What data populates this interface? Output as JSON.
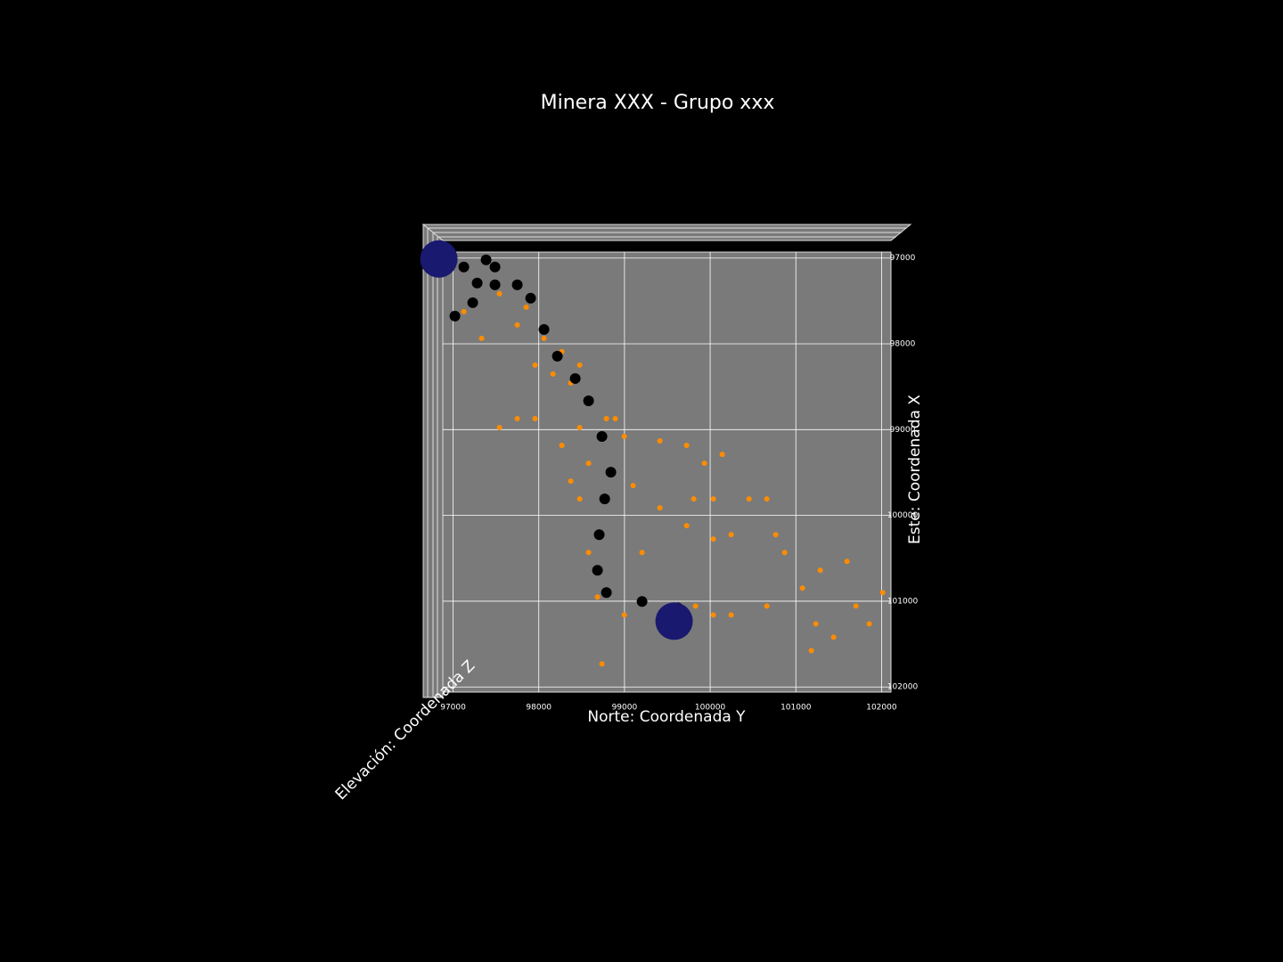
{
  "chart_data": {
    "type": "scatter3d",
    "title": "Minera XXX - Grupo xxx",
    "xlabel": "Norte:  Coordenada Y",
    "ylabel": "Este:  Coordenada X",
    "zlabel": "Elevación: Coordenada Z",
    "xlim": [
      96880,
      102110
    ],
    "xticks": [
      97000,
      98000,
      99000,
      100000,
      101000,
      102000
    ],
    "ylim": [
      102060,
      96930
    ],
    "yticks": [
      97000,
      98000,
      99000,
      100000,
      101000,
      102000
    ],
    "grid": true,
    "series": [
      {
        "color": "#ff8c00",
        "marker_size": 3,
        "x": [
          97125,
          97541,
          97853,
          98061,
          98269,
          98477,
          98373,
          98581,
          98789,
          98997,
          99413,
          99725,
          99933,
          100037,
          100245,
          100453,
          100661,
          100765,
          100869,
          98477,
          98581,
          98477,
          98581,
          98685,
          98997,
          99517,
          100037,
          100245,
          99101,
          99413,
          99725,
          100037,
          99808,
          97957,
          97749,
          97541,
          97333,
          97749,
          97957,
          98165,
          98893,
          100141,
          100661,
          101077,
          101285,
          101233,
          101181,
          101441,
          101597,
          101701,
          101857,
          102013,
          98737,
          99205,
          98269,
          98373,
          99621,
          99829
        ],
        "y": [
          97624,
          97416,
          97572,
          97936,
          98092,
          98248,
          98456,
          98664,
          98872,
          99080,
          99132,
          99184,
          99392,
          99808,
          100224,
          99808,
          99808,
          100224,
          100432,
          98976,
          99392,
          99808,
          100432,
          100952,
          101160,
          101160,
          101160,
          101160,
          99652,
          99912,
          100120,
          100276,
          99808,
          98872,
          98872,
          98976,
          97936,
          97780,
          98248,
          98352,
          98872,
          99288,
          101056,
          100848,
          100640,
          101264,
          101576,
          101420,
          100536,
          101056,
          101264,
          100900,
          101732,
          100432,
          99184,
          99600,
          101108,
          101056
        ]
      },
      {
        "color": "#000000",
        "marker_size": 6,
        "x": [
          96917,
          97125,
          97385,
          97489,
          97281,
          97021,
          97229,
          97489,
          97749,
          97905,
          98061,
          98217,
          98425,
          98581,
          98737,
          98841,
          98769,
          98705,
          98685,
          98789,
          99205,
          99621
        ],
        "y": [
          97000,
          97104,
          97021,
          97104,
          97291,
          97676,
          97520,
          97312,
          97312,
          97468,
          97832,
          98144,
          98404,
          98664,
          99080,
          99496,
          99808,
          100224,
          100640,
          100900,
          101004,
          101077
        ]
      },
      {
        "color": "#191970",
        "marker_size": 21,
        "x": [
          96834,
          99579
        ],
        "y": [
          97010,
          101233
        ]
      }
    ]
  }
}
